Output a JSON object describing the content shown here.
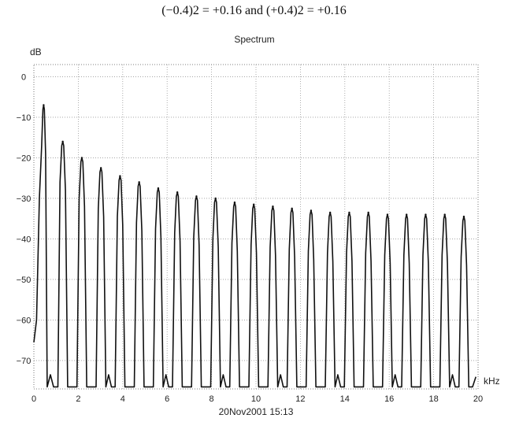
{
  "caption": "(−0.4)2 = +0.16 and (+0.4)2 = +0.16",
  "chart_data": {
    "type": "line",
    "title": "Spectrum",
    "ylabel": "dB",
    "xlabel": "kHz",
    "timestamp": "20Nov2001 15:13",
    "xlim": [
      0,
      20
    ],
    "ylim": [
      -77,
      3
    ],
    "grid": true,
    "x_ticks": [
      "0",
      "2",
      "4",
      "6",
      "8",
      "10",
      "12",
      "14",
      "16",
      "18",
      "20"
    ],
    "y_ticks": [
      "0",
      "−10",
      "−20",
      "−30",
      "−40",
      "−50",
      "−60",
      "−70"
    ],
    "floor_db": -76.5,
    "series": [
      {
        "peaks": [
          {
            "x": 0.44,
            "y": -7
          },
          {
            "x": 1.3,
            "y": -16
          },
          {
            "x": 2.16,
            "y": -20
          },
          {
            "x": 3.02,
            "y": -22.5
          },
          {
            "x": 3.88,
            "y": -24.5
          },
          {
            "x": 4.74,
            "y": -26
          },
          {
            "x": 5.6,
            "y": -27.5
          },
          {
            "x": 6.46,
            "y": -28.5
          },
          {
            "x": 7.32,
            "y": -29.5
          },
          {
            "x": 8.18,
            "y": -30
          },
          {
            "x": 9.04,
            "y": -31
          },
          {
            "x": 9.9,
            "y": -31.5
          },
          {
            "x": 10.76,
            "y": -32
          },
          {
            "x": 11.62,
            "y": -32.5
          },
          {
            "x": 12.48,
            "y": -33
          },
          {
            "x": 13.34,
            "y": -33.5
          },
          {
            "x": 14.2,
            "y": -33.5
          },
          {
            "x": 15.06,
            "y": -33.5
          },
          {
            "x": 15.92,
            "y": -34
          },
          {
            "x": 16.78,
            "y": -34
          },
          {
            "x": 17.64,
            "y": -34
          },
          {
            "x": 18.5,
            "y": -34
          },
          {
            "x": 19.36,
            "y": -34.5
          }
        ]
      }
    ]
  }
}
